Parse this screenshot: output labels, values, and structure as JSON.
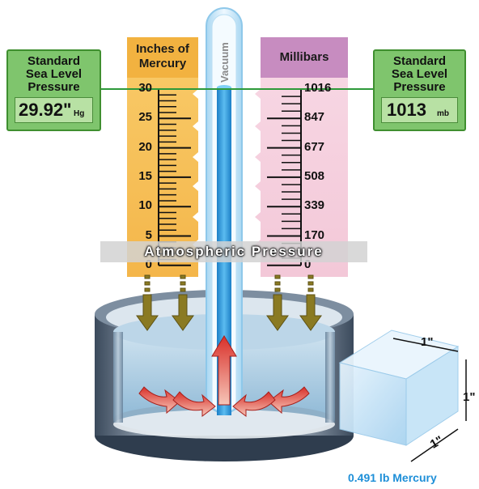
{
  "left_scale": {
    "title_line1": "Inches of",
    "title_line2": "Mercury",
    "ticks": [
      "30",
      "25",
      "20",
      "15",
      "10",
      "5",
      "0"
    ]
  },
  "right_scale": {
    "title": "Millibars",
    "ticks": [
      "1016",
      "847",
      "677",
      "508",
      "339",
      "170",
      "0"
    ]
  },
  "left_box": {
    "line1": "Standard",
    "line2": "Sea Level",
    "line3": "Pressure",
    "value": "29.92\"",
    "unit": "Hg"
  },
  "right_box": {
    "line1": "Standard",
    "line2": "Sea Level",
    "line3": "Pressure",
    "value": "1013",
    "unit": "mb"
  },
  "tube_label": "Vacuum",
  "band_label": "Atmospheric Pressure",
  "cube": {
    "dim_top": "1\"",
    "dim_right": "1\"",
    "dim_bottom": "1\"",
    "caption": "0.491 lb Mercury"
  },
  "colors": {
    "orange_panel": "#f7c25a",
    "pink_panel": "#f5d0de",
    "purple_header": "#c78cc0",
    "green_box": "#7fc56d",
    "mercury_blue": "#2a9be0",
    "arrow_olive": "#8a7a22",
    "arrow_red": "#d9302a",
    "caption_blue": "#1e8fd8"
  }
}
